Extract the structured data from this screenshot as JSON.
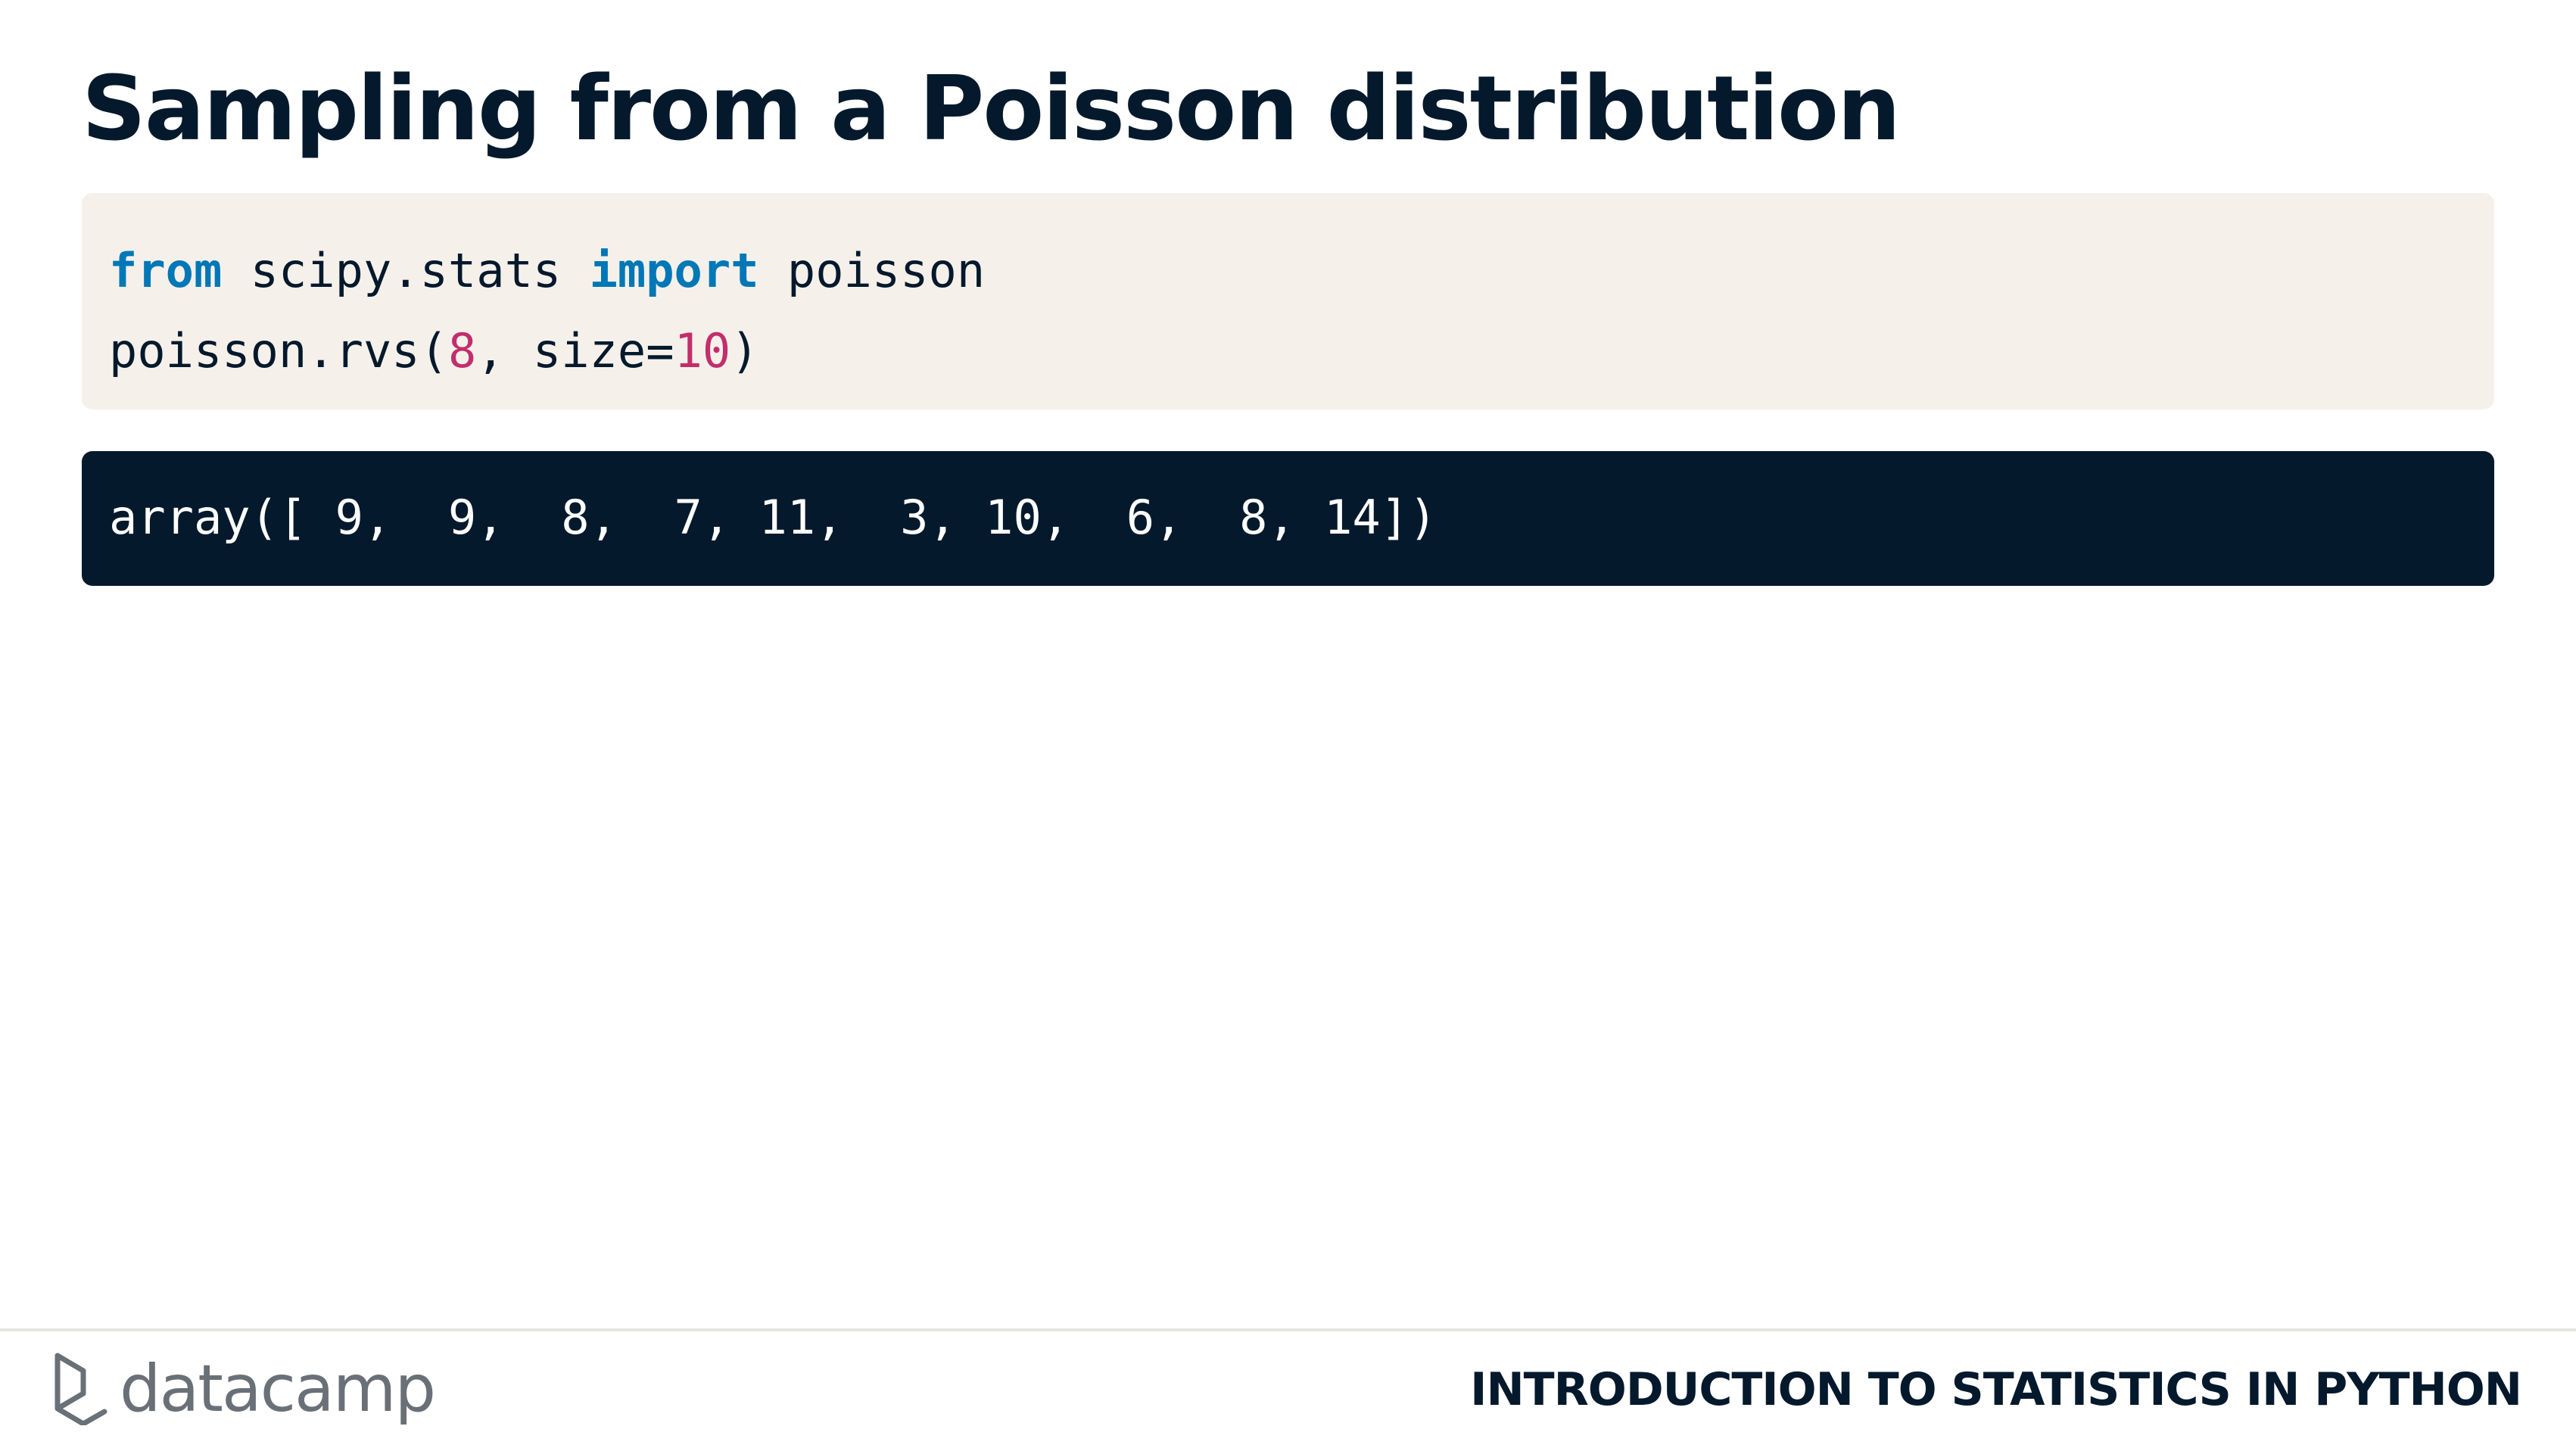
{
  "slide": {
    "title": "Sampling from a Poisson distribution"
  },
  "code": {
    "line1": {
      "kw_from": "from",
      "module": " scipy.stats ",
      "kw_import": "import",
      "name": " poisson"
    },
    "line2": {
      "call": "poisson.rvs(",
      "mu": "8",
      "middle": ", size=",
      "size": "10",
      "close": ")"
    }
  },
  "output": {
    "text": "array([ 9,  9,  8,  7, 11,  3, 10,  6,  8, 14])"
  },
  "footer": {
    "logo_text": "datacamp",
    "logo_icon": "datacamp-logo-icon",
    "course_name": "INTRODUCTION TO STATISTICS IN PYTHON"
  },
  "colors": {
    "title": "#05192d",
    "code_background": "#f5f1ea",
    "keyword": "#0077b6",
    "number": "#c22e6b",
    "output_background": "#05192d",
    "logo": "#6a7077"
  }
}
